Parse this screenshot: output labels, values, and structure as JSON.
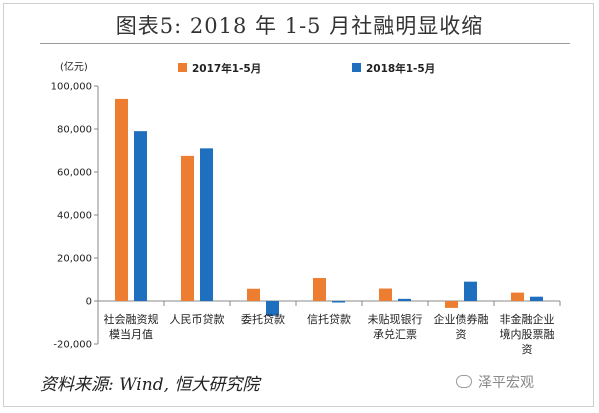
{
  "title": "图表5:  2018 年 1-5 月社融明显收缩",
  "source": "资料来源: Wind, 恒大研究院",
  "watermark": "泽平宏观",
  "colors": {
    "series_2017": "#ED7D31",
    "series_2018": "#1F6FBF",
    "axis": "#888888"
  },
  "chart_data": {
    "type": "bar",
    "unit_label": "(亿元)",
    "categories": [
      [
        "社会融资规",
        "模当月值"
      ],
      [
        "人民币贷款"
      ],
      [
        "委托贷款"
      ],
      [
        "信托贷款"
      ],
      [
        "未贴现银行",
        "承兑汇票"
      ],
      [
        "企业债券融",
        "资"
      ],
      [
        "非金融企业",
        "境内股票融",
        "资"
      ]
    ],
    "series": [
      {
        "name": "2017年1-5月",
        "values": [
          94000,
          67500,
          5700,
          10700,
          5800,
          -3200,
          3900
        ]
      },
      {
        "name": "2018年1-5月",
        "values": [
          79000,
          71000,
          -6800,
          -700,
          1000,
          9000,
          2000
        ]
      }
    ],
    "yticks": [
      "-20,000",
      "0",
      "20,000",
      "40,000",
      "60,000",
      "80,000",
      "100,000"
    ],
    "ylim": [
      -20000,
      100000
    ],
    "legend_position": "top"
  }
}
